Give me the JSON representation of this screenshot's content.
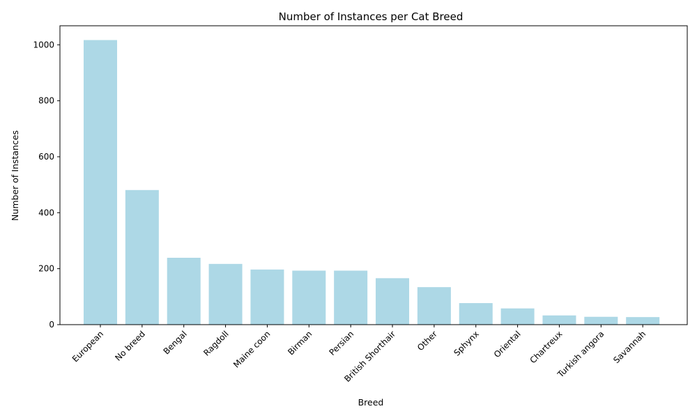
{
  "chart_data": {
    "type": "bar",
    "title": "Number of Instances per Cat Breed",
    "xlabel": "Breed",
    "ylabel": "Number of Instances",
    "categories": [
      "European",
      "No breed",
      "Bengal",
      "Ragdoll",
      "Maine coon",
      "Birman",
      "Persian",
      "British Shorthair",
      "Other",
      "Sphynx",
      "Oriental",
      "Chartreux",
      "Turkish angora",
      "Savannah"
    ],
    "values": [
      1017,
      481,
      239,
      217,
      197,
      193,
      193,
      166,
      134,
      77,
      58,
      33,
      28,
      27
    ],
    "ylim": [
      0,
      1068
    ],
    "yticks": [
      0,
      200,
      400,
      600,
      800,
      1000
    ],
    "bar_color": "#add8e6",
    "grid": false,
    "xtick_rotation": 45
  }
}
